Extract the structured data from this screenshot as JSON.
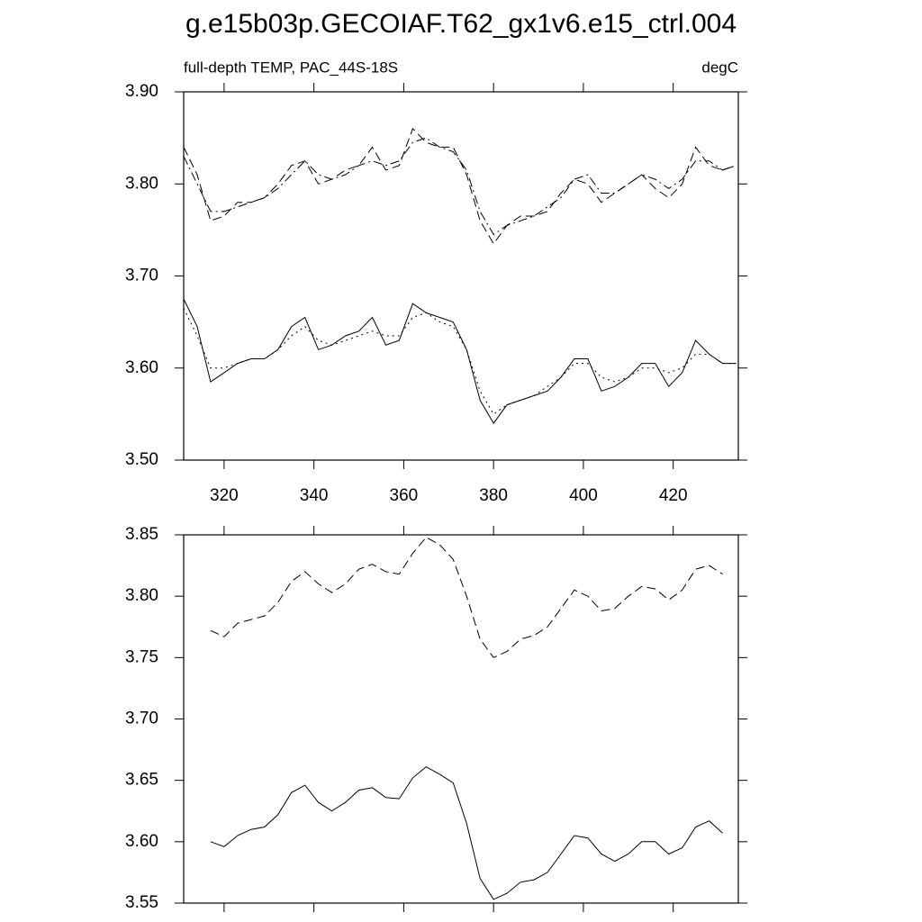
{
  "chart_data": [
    {
      "type": "line",
      "title": "g.e15b03p.GECOIAF.T62_gx1v6.e15_ctrl.004",
      "subtitle_left": "full-depth TEMP, PAC_44S-18S",
      "subtitle_right": "degC",
      "x": [
        311,
        314,
        317,
        320,
        323,
        326,
        329,
        332,
        335,
        338,
        341,
        344,
        347,
        350,
        353,
        356,
        359,
        362,
        365,
        368,
        371,
        374,
        377,
        380,
        383,
        386,
        389,
        392,
        395,
        398,
        401,
        404,
        407,
        410,
        413,
        416,
        419,
        422,
        425,
        428,
        431,
        434
      ],
      "xlim": [
        311,
        434.5
      ],
      "xticks": [
        320,
        340,
        360,
        380,
        400,
        420
      ],
      "xticklabels": true,
      "ylim": [
        3.5,
        3.9
      ],
      "yticks": [
        {
          "value": 3.5,
          "label": "3.50"
        },
        {
          "value": 3.6,
          "label": "3.60"
        },
        {
          "value": 3.7,
          "label": "3.70"
        },
        {
          "value": 3.8,
          "label": "3.80"
        },
        {
          "value": 3.9,
          "label": "3.90"
        }
      ],
      "series": [
        {
          "color": "#000000",
          "dash": "dashed",
          "values": [
            3.84,
            3.81,
            3.76,
            3.765,
            3.78,
            3.78,
            3.785,
            3.8,
            3.82,
            3.825,
            3.8,
            3.805,
            3.815,
            3.82,
            3.84,
            3.815,
            3.82,
            3.86,
            3.845,
            3.84,
            3.84,
            3.81,
            3.76,
            3.735,
            3.755,
            3.765,
            3.765,
            3.77,
            3.79,
            3.805,
            3.8,
            3.78,
            3.79,
            3.8,
            3.81,
            3.795,
            3.785,
            3.8,
            3.84,
            3.82,
            3.815,
            3.82
          ]
        },
        {
          "color": "#000000",
          "dash": "dashdot",
          "values": [
            3.83,
            3.8,
            3.77,
            3.77,
            3.775,
            3.78,
            3.785,
            3.795,
            3.81,
            3.825,
            3.81,
            3.805,
            3.81,
            3.82,
            3.825,
            3.82,
            3.825,
            3.845,
            3.85,
            3.84,
            3.835,
            3.815,
            3.77,
            3.745,
            3.755,
            3.76,
            3.765,
            3.775,
            3.785,
            3.805,
            3.81,
            3.79,
            3.79,
            3.8,
            3.81,
            3.805,
            3.795,
            3.805,
            3.825,
            3.825,
            3.815,
            3.82
          ]
        },
        {
          "color": "#000000",
          "dash": "solid",
          "values": [
            3.675,
            3.645,
            3.585,
            3.595,
            3.605,
            3.61,
            3.61,
            3.62,
            3.645,
            3.655,
            3.62,
            3.625,
            3.635,
            3.64,
            3.655,
            3.625,
            3.63,
            3.67,
            3.66,
            3.655,
            3.65,
            3.62,
            3.565,
            3.54,
            3.56,
            3.565,
            3.57,
            3.575,
            3.59,
            3.61,
            3.61,
            3.575,
            3.58,
            3.59,
            3.605,
            3.605,
            3.58,
            3.595,
            3.63,
            3.615,
            3.605,
            3.605
          ]
        },
        {
          "color": "#000000",
          "dash": "dotted",
          "values": [
            3.665,
            3.635,
            3.6,
            3.6,
            3.605,
            3.61,
            3.61,
            3.62,
            3.635,
            3.645,
            3.63,
            3.625,
            3.63,
            3.635,
            3.64,
            3.635,
            3.635,
            3.655,
            3.66,
            3.65,
            3.645,
            3.62,
            3.575,
            3.55,
            3.56,
            3.565,
            3.57,
            3.58,
            3.59,
            3.605,
            3.605,
            3.59,
            3.585,
            3.59,
            3.6,
            3.6,
            3.595,
            3.6,
            3.615,
            3.615,
            3.605,
            3.605
          ]
        }
      ]
    },
    {
      "type": "line",
      "x": [
        317,
        320,
        323,
        326,
        329,
        332,
        335,
        338,
        341,
        344,
        347,
        350,
        353,
        356,
        359,
        362,
        365,
        368,
        371,
        374,
        377,
        380,
        383,
        386,
        389,
        392,
        395,
        398,
        401,
        404,
        407,
        410,
        413,
        416,
        419,
        422,
        425,
        428,
        431
      ],
      "xlim": [
        311,
        434.5
      ],
      "xticks": [
        320,
        340,
        360,
        380,
        400,
        420
      ],
      "xticklabels": false,
      "ylim": [
        3.55,
        3.85
      ],
      "yticks": [
        {
          "value": 3.55,
          "label": "3.55"
        },
        {
          "value": 3.6,
          "label": "3.60"
        },
        {
          "value": 3.65,
          "label": "3.65"
        },
        {
          "value": 3.7,
          "label": "3.70"
        },
        {
          "value": 3.75,
          "label": "3.75"
        },
        {
          "value": 3.8,
          "label": "3.80"
        },
        {
          "value": 3.85,
          "label": "3.85"
        }
      ],
      "series": [
        {
          "color": "#000000",
          "dash": "dashed",
          "values": [
            3.772,
            3.767,
            3.778,
            3.781,
            3.784,
            3.795,
            3.812,
            3.82,
            3.81,
            3.803,
            3.81,
            3.822,
            3.826,
            3.82,
            3.818,
            3.835,
            3.848,
            3.842,
            3.83,
            3.8,
            3.765,
            3.75,
            3.755,
            3.765,
            3.768,
            3.775,
            3.79,
            3.805,
            3.8,
            3.788,
            3.79,
            3.8,
            3.808,
            3.806,
            3.797,
            3.805,
            3.822,
            3.825,
            3.818
          ]
        },
        {
          "color": "#000000",
          "dash": "solid",
          "values": [
            3.6,
            3.596,
            3.605,
            3.61,
            3.612,
            3.622,
            3.64,
            3.646,
            3.632,
            3.625,
            3.632,
            3.642,
            3.644,
            3.636,
            3.635,
            3.652,
            3.661,
            3.655,
            3.648,
            3.615,
            3.57,
            3.553,
            3.558,
            3.567,
            3.569,
            3.575,
            3.59,
            3.605,
            3.603,
            3.59,
            3.584,
            3.59,
            3.6,
            3.6,
            3.59,
            3.595,
            3.612,
            3.617,
            3.607
          ]
        }
      ]
    }
  ]
}
